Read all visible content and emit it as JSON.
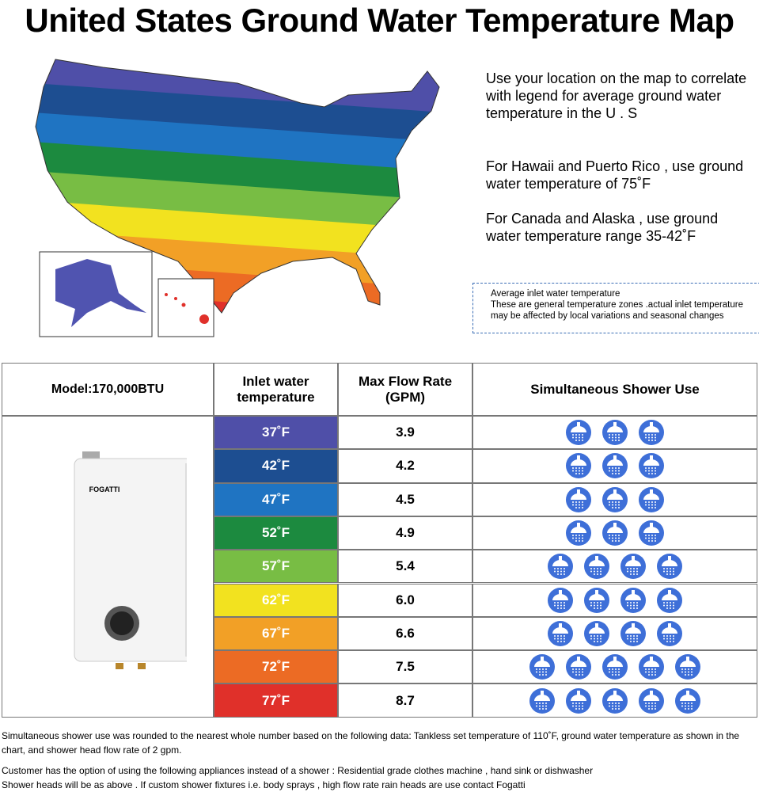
{
  "header": {
    "title": "United States Ground Water Temperature Map"
  },
  "notes": [
    "Use your location on the map to correlate with legend for average ground water temperature in the U . S",
    "For Hawaii and Puerto Rico , use ground water temperature of 75˚F",
    "For Canada and Alaska , use ground water temperature range 35-42˚F"
  ],
  "legend_box": {
    "title": "Average inlet water temperature",
    "text": "These are general temperature zones .actual inlet temperature may be affected by local variations and seasonal changes"
  },
  "table": {
    "headers": [
      "Model:170,000BTU",
      "Inlet water temperature",
      "Max Flow Rate (GPM)",
      "Simultaneous Shower Use"
    ],
    "brand": "FOGATTI",
    "rows": [
      {
        "temp": "37˚F",
        "flow": "3.9",
        "showers": 3,
        "color": "#4f4fa8"
      },
      {
        "temp": "42˚F",
        "flow": "4.2",
        "showers": 3,
        "color": "#1d4e91"
      },
      {
        "temp": "47˚F",
        "flow": "4.5",
        "showers": 3,
        "color": "#1f74c2"
      },
      {
        "temp": "52˚F",
        "flow": "4.9",
        "showers": 3,
        "color": "#1c8a3f"
      },
      {
        "temp": "57˚F",
        "flow": "5.4",
        "showers": 4,
        "color": "#78bd44"
      },
      {
        "temp": "62˚F",
        "flow": "6.0",
        "showers": 4,
        "color": "#f2e21f"
      },
      {
        "temp": "67˚F",
        "flow": "6.6",
        "showers": 4,
        "color": "#f2a026"
      },
      {
        "temp": "72˚F",
        "flow": "7.5",
        "showers": 5,
        "color": "#ec6b24"
      },
      {
        "temp": "77˚F",
        "flow": "8.7",
        "showers": 5,
        "color": "#e0302a"
      }
    ]
  },
  "footer": [
    "Simultaneous shower use was rounded to the nearest whole number based on the following data: Tankless set temperature of 110˚F, ground water temperature as shown in the chart, and shower head flow rate of 2 gpm.",
    "Customer has the option of using the following appliances instead of a shower : Residential grade clothes machine , hand sink or dishwasher",
    "Shower heads will be as above . If custom shower fixtures i.e. body sprays , high flow rate rain heads are use contact Fogatti"
  ]
}
